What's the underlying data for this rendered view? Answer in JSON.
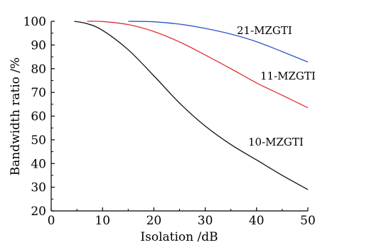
{
  "chart_data": {
    "type": "line",
    "xlabel": "Isolation /dB",
    "ylabel": "Bandwidth ratio /%",
    "xlim": [
      0,
      50
    ],
    "ylim": [
      20,
      100
    ],
    "xticks": [
      0,
      10,
      20,
      30,
      40,
      50
    ],
    "yticks": [
      20,
      30,
      40,
      50,
      60,
      70,
      80,
      90,
      100
    ],
    "grid": false,
    "legend": "inline labels",
    "series": [
      {
        "name": "21-MZGTI",
        "color": "#2b57c4",
        "x": [
          15,
          20,
          25,
          30,
          35,
          40,
          45,
          50
        ],
        "y": [
          100,
          99.8,
          98.8,
          97.0,
          94.6,
          91.4,
          87.2,
          82.8
        ]
      },
      {
        "name": "11-MZGTI",
        "color": "#e03030",
        "x": [
          7,
          10,
          15,
          20,
          25,
          30,
          35,
          40,
          45,
          50
        ],
        "y": [
          100,
          99.9,
          98.6,
          95.7,
          91.3,
          85.8,
          80.0,
          74.0,
          68.8,
          63.5
        ]
      },
      {
        "name": "10-MZGTI",
        "color": "#111111",
        "x": [
          4.5,
          7,
          10,
          15,
          20,
          25,
          30,
          35,
          40,
          45,
          50
        ],
        "y": [
          100,
          99.0,
          96.2,
          88.0,
          77.0,
          65.5,
          55.8,
          48.0,
          41.5,
          35.0,
          29.0
        ]
      }
    ]
  }
}
